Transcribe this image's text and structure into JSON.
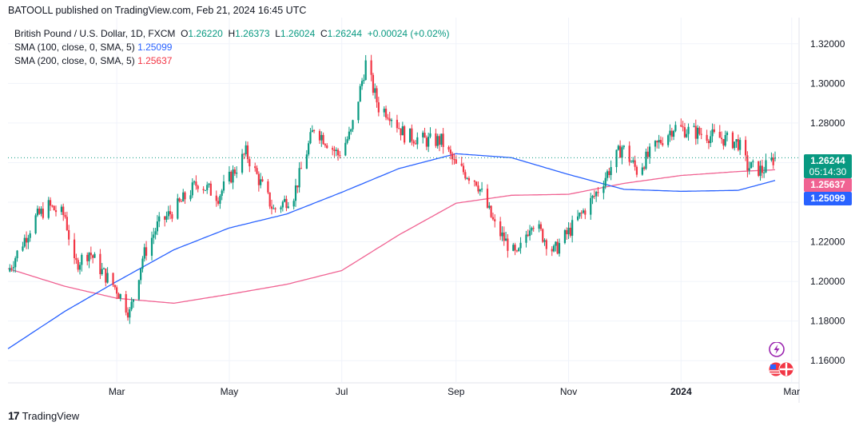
{
  "header": {
    "published_line": "BATOOLL published on TradingView.com, Feb 21, 2024 16:45 UTC"
  },
  "legend": {
    "symbol": "British Pound / U.S. Dollar, 1D, FXCM",
    "open_label": "O",
    "open": "1.26220",
    "high_label": "H",
    "high": "1.26373",
    "low_label": "L",
    "low": "1.26024",
    "close_label": "C",
    "close": "1.26244",
    "change": "+0.00024 (+0.02%)",
    "sma100_label": "SMA (100, close, 0, SMA, 5)",
    "sma100_value": "1.25099",
    "sma200_label": "SMA (200, close, 0, SMA, 5)",
    "sma200_value": "1.25637"
  },
  "price_tags": {
    "last_price": "1.26244",
    "countdown": "05:14:30",
    "sma200": "1.25637",
    "sma100": "1.25099"
  },
  "footer": {
    "brand": "TradingView",
    "logo": "17"
  },
  "colors": {
    "up": "#089981",
    "down": "#f23645",
    "sma100": "#2962ff",
    "sma200": "#f06292",
    "grid": "#f0f3fa"
  },
  "icons": [
    "lightning-icon",
    "us-uk-flags-icon"
  ],
  "chart_data": {
    "type": "candlestick",
    "ylim": [
      1.15,
      1.33
    ],
    "y_ticks": [
      "1.16000",
      "1.18000",
      "1.20000",
      "1.22000",
      "1.24000",
      "1.26000",
      "1.28000",
      "1.30000",
      "1.32000"
    ],
    "y_tick_values": [
      1.16,
      1.18,
      1.2,
      1.22,
      1.24,
      1.26,
      1.28,
      1.3,
      1.32
    ],
    "x_ticks": [
      "Mar",
      "May",
      "Jul",
      "Sep",
      "Nov",
      "2024",
      "Mar"
    ],
    "x_tick_dates": [
      "2023-03-01",
      "2023-05-01",
      "2023-07-01",
      "2023-09-01",
      "2023-11-01",
      "2024-01-01",
      "2024-03-01"
    ],
    "xlim": [
      "2023-01-01",
      "2024-03-05"
    ],
    "price_anchors": [
      [
        "2023-01-01",
        1.205
      ],
      [
        "2023-01-08",
        1.218
      ],
      [
        "2023-01-16",
        1.232
      ],
      [
        "2023-01-23",
        1.238
      ],
      [
        "2023-02-01",
        1.233
      ],
      [
        "2023-02-06",
        1.208
      ],
      [
        "2023-02-14",
        1.215
      ],
      [
        "2023-02-21",
        1.205
      ],
      [
        "2023-03-01",
        1.196
      ],
      [
        "2023-03-08",
        1.184
      ],
      [
        "2023-03-15",
        1.212
      ],
      [
        "2023-03-23",
        1.228
      ],
      [
        "2023-04-03",
        1.238
      ],
      [
        "2023-04-14",
        1.25
      ],
      [
        "2023-04-25",
        1.243
      ],
      [
        "2023-05-10",
        1.265
      ],
      [
        "2023-05-25",
        1.236
      ],
      [
        "2023-06-05",
        1.244
      ],
      [
        "2023-06-16",
        1.278
      ],
      [
        "2023-06-29",
        1.264
      ],
      [
        "2023-07-06",
        1.275
      ],
      [
        "2023-07-14",
        1.31
      ],
      [
        "2023-07-21",
        1.288
      ],
      [
        "2023-07-27",
        1.285
      ],
      [
        "2023-08-04",
        1.274
      ],
      [
        "2023-08-16",
        1.271
      ],
      [
        "2023-08-24",
        1.271
      ],
      [
        "2023-09-01",
        1.258
      ],
      [
        "2023-09-12",
        1.251
      ],
      [
        "2023-09-22",
        1.228
      ],
      [
        "2023-10-04",
        1.212
      ],
      [
        "2023-10-12",
        1.231
      ],
      [
        "2023-10-24",
        1.215
      ],
      [
        "2023-11-01",
        1.225
      ],
      [
        "2023-11-15",
        1.243
      ],
      [
        "2023-11-30",
        1.268
      ],
      [
        "2023-12-08",
        1.256
      ],
      [
        "2023-12-20",
        1.27
      ],
      [
        "2023-12-28",
        1.278
      ],
      [
        "2024-01-10",
        1.275
      ],
      [
        "2024-01-24",
        1.272
      ],
      [
        "2024-02-01",
        1.27
      ],
      [
        "2024-02-06",
        1.258
      ],
      [
        "2024-02-14",
        1.256
      ],
      [
        "2024-02-21",
        1.2624
      ]
    ],
    "sma100_anchors": [
      [
        "2023-01-01",
        1.166
      ],
      [
        "2023-02-01",
        1.185
      ],
      [
        "2023-03-01",
        1.2
      ],
      [
        "2023-04-01",
        1.216
      ],
      [
        "2023-05-01",
        1.227
      ],
      [
        "2023-06-01",
        1.234
      ],
      [
        "2023-07-01",
        1.245
      ],
      [
        "2023-08-01",
        1.257
      ],
      [
        "2023-09-01",
        1.2645
      ],
      [
        "2023-10-01",
        1.2625
      ],
      [
        "2023-11-01",
        1.254
      ],
      [
        "2023-12-01",
        1.2465
      ],
      [
        "2024-01-01",
        1.2455
      ],
      [
        "2024-02-01",
        1.246
      ],
      [
        "2024-02-21",
        1.25099
      ]
    ],
    "sma200_anchors": [
      [
        "2023-01-01",
        1.2065
      ],
      [
        "2023-02-01",
        1.1975
      ],
      [
        "2023-03-01",
        1.1915
      ],
      [
        "2023-04-01",
        1.189
      ],
      [
        "2023-05-01",
        1.1935
      ],
      [
        "2023-06-01",
        1.1985
      ],
      [
        "2023-07-01",
        1.2055
      ],
      [
        "2023-08-01",
        1.2235
      ],
      [
        "2023-09-01",
        1.2395
      ],
      [
        "2023-10-01",
        1.2435
      ],
      [
        "2023-11-01",
        1.244
      ],
      [
        "2023-12-01",
        1.2495
      ],
      [
        "2024-01-01",
        1.2535
      ],
      [
        "2024-02-01",
        1.2555
      ],
      [
        "2024-02-21",
        1.25637
      ]
    ],
    "last_close": 1.26244
  }
}
